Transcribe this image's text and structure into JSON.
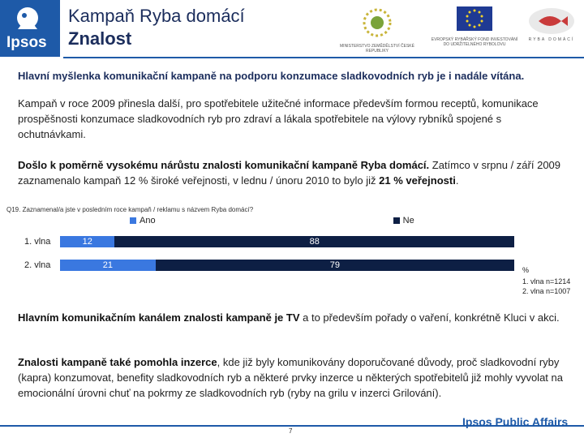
{
  "header": {
    "brand": "Ipsos",
    "title_line1": "Kampaň Ryba domácí",
    "title_line2": "Znalost",
    "logo1_text": "MINISTERSTVO ZEMĚDĚLSTVÍ ČESKÉ REPUBLIKY",
    "logo2_text": "EVROPSKÝ RYBÁŘSKÝ FOND INVESTOVÁNÍ DO UDRŽITELNÉHO RYBOLOVU",
    "logo3_text": "RYBA DOMÁCÍ"
  },
  "headline": "Hlavní myšlenka komunikační kampaně na podporu konzumace sladkovodních ryb je i nadále vítána.",
  "para1": "Kampaň v roce 2009 přinesla další, pro spotřebitele užitečné informace především formou receptů, komunikace prospěšnosti konzumace sladkovodních ryb pro zdraví a lákala spotřebitele na výlovy rybníků spojené s ochutnávkami.",
  "para2": {
    "bold": "Došlo k poměrně vysokému nárůstu znalosti komunikační kampaně Ryba domácí.",
    "normal": " Zatímco v srpnu / září 2009 zaznamenalo kampaň 12 % široké veřejnosti, v lednu / únoru 2010 to bylo již ",
    "bold_end": "21 % veřejnosti",
    "end": "."
  },
  "question": "Q19. Zaznamenal/a jste v posledním roce kampaň / reklamu s názvem Ryba domácí?",
  "chart_data": {
    "type": "bar",
    "orientation": "horizontal",
    "stacked": true,
    "categories": [
      "1. vlna",
      "2. vlna"
    ],
    "series": [
      {
        "name": "Ano",
        "values": [
          12,
          21
        ],
        "color": "#3a78e0"
      },
      {
        "name": "Ne",
        "values": [
          88,
          79
        ],
        "color": "#0d1f44"
      }
    ],
    "xlim": [
      0,
      100
    ],
    "unit": "%",
    "legend": "top"
  },
  "chart_notes": {
    "unit": "%",
    "n1": "1. vlna n=1214",
    "n2": "2. vlna n=1007"
  },
  "para3": {
    "bold": "Hlavním komunikačním kanálem znalosti kampaně je TV",
    "normal": " a to především pořady o vaření, konkrétně Kluci v akci."
  },
  "para4": {
    "bold": "Znalosti kampaně také pomohla inzerce",
    "normal": ", kde již byly komunikovány doporučované důvody, proč sladkovodní ryby (kapra) konzumovat, benefity sladkovodních ryb a některé prvky inzerce u některých spotřebitelů již mohly vyvolat na emocionální úrovni chuť na pokrmy ze sladkovodních ryb (ryby na grilu v inzerci Grilování)."
  },
  "footer": {
    "page": "7",
    "brand": "Ipsos Public Affairs"
  },
  "colors": {
    "brand_blue": "#1e5aa8",
    "series_ano": "#3a78e0",
    "series_ne": "#0d1f44"
  }
}
